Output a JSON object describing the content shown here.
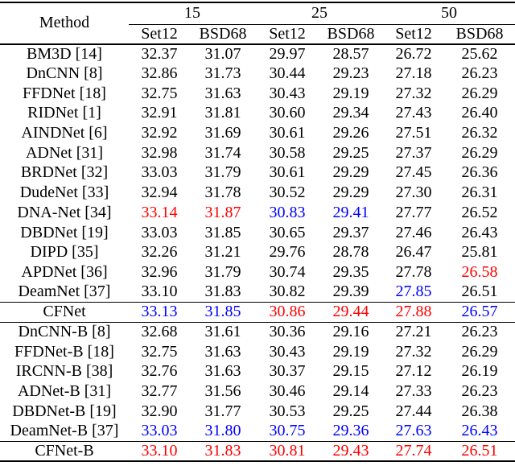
{
  "page": {
    "background": "#ffffff"
  },
  "colors": {
    "k": "#000000",
    "r": "#ff0000",
    "b": "#0000ff"
  },
  "table": {
    "corner_label": "Method",
    "noise_levels": [
      "15",
      "25",
      "50"
    ],
    "dataset_headers": [
      "Set12",
      "BSD68",
      "Set12",
      "BSD68",
      "Set12",
      "BSD68"
    ],
    "sections": [
      {
        "name": "known-noise-methods",
        "separator_above": false,
        "rows": [
          {
            "method": "BM3D [14]",
            "values": [
              "32.37",
              "31.07",
              "29.97",
              "28.57",
              "26.72",
              "25.62"
            ]
          },
          {
            "method": "DnCNN [8]",
            "values": [
              "32.86",
              "31.73",
              "30.44",
              "29.23",
              "27.18",
              "26.23"
            ]
          },
          {
            "method": "FFDNet [18]",
            "values": [
              "32.75",
              "31.63",
              "30.43",
              "29.19",
              "27.32",
              "26.29"
            ]
          },
          {
            "method": "RIDNet [1]",
            "values": [
              "32.91",
              "31.81",
              "30.60",
              "29.34",
              "27.43",
              "26.40"
            ]
          },
          {
            "method": "AINDNet [6]",
            "values": [
              "32.92",
              "31.69",
              "30.61",
              "29.26",
              "27.51",
              "26.32"
            ]
          },
          {
            "method": "ADNet [31]",
            "values": [
              "32.98",
              "31.74",
              "30.58",
              "29.25",
              "27.37",
              "26.29"
            ]
          },
          {
            "method": "BRDNet [32]",
            "values": [
              "33.03",
              "31.79",
              "30.61",
              "29.29",
              "27.45",
              "26.36"
            ]
          },
          {
            "method": "DudeNet [33]",
            "values": [
              "32.94",
              "31.78",
              "30.52",
              "29.29",
              "27.30",
              "26.31"
            ]
          },
          {
            "method": "DNA-Net [34]",
            "values": [
              "33.14",
              "31.87",
              "30.83",
              "29.41",
              "27.77",
              "26.52"
            ],
            "colors": [
              "r",
              "r",
              "b",
              "b",
              "k",
              "k"
            ]
          },
          {
            "method": "DBDNet [19]",
            "values": [
              "33.03",
              "31.85",
              "30.65",
              "29.37",
              "27.46",
              "26.43"
            ]
          },
          {
            "method": "DIPD [35]",
            "values": [
              "32.26",
              "31.21",
              "29.76",
              "28.78",
              "26.47",
              "25.81"
            ]
          },
          {
            "method": "APDNet [36]",
            "values": [
              "32.96",
              "31.79",
              "30.74",
              "29.35",
              "27.78",
              "26.58"
            ],
            "colors": [
              "k",
              "k",
              "k",
              "k",
              "k",
              "r"
            ]
          },
          {
            "method": "DeamNet [37]",
            "values": [
              "33.10",
              "31.83",
              "30.82",
              "29.39",
              "27.85",
              "26.51"
            ],
            "colors": [
              "k",
              "k",
              "k",
              "k",
              "b",
              "k"
            ]
          }
        ]
      },
      {
        "name": "cfnet",
        "separator_above": true,
        "rows": [
          {
            "method": "CFNet",
            "values": [
              "33.13",
              "31.85",
              "30.86",
              "29.44",
              "27.88",
              "26.57"
            ],
            "colors": [
              "b",
              "b",
              "r",
              "r",
              "r",
              "b"
            ]
          }
        ]
      },
      {
        "name": "blind-noise-methods",
        "separator_above": true,
        "rows": [
          {
            "method": "DnCNN-B [8]",
            "values": [
              "32.68",
              "31.61",
              "30.36",
              "29.16",
              "27.21",
              "26.23"
            ]
          },
          {
            "method": "FFDNet-B [18]",
            "values": [
              "32.75",
              "31.63",
              "30.43",
              "29.19",
              "27.32",
              "26.29"
            ]
          },
          {
            "method": "IRCNN-B [38]",
            "values": [
              "32.76",
              "31.63",
              "30.37",
              "29.15",
              "27.12",
              "26.19"
            ]
          },
          {
            "method": "ADNet-B [31]",
            "values": [
              "32.77",
              "31.56",
              "30.46",
              "29.14",
              "27.33",
              "26.23"
            ]
          },
          {
            "method": "DBDNet-B [19]",
            "values": [
              "32.90",
              "31.77",
              "30.53",
              "29.25",
              "27.44",
              "26.38"
            ]
          },
          {
            "method": "DeamNet-B [37]",
            "values": [
              "33.03",
              "31.80",
              "30.75",
              "29.36",
              "27.63",
              "26.43"
            ],
            "colors": [
              "b",
              "b",
              "b",
              "b",
              "b",
              "b"
            ]
          }
        ]
      },
      {
        "name": "cfnet-b",
        "separator_above": true,
        "rows": [
          {
            "method": "CFNet-B",
            "values": [
              "33.10",
              "31.83",
              "30.81",
              "29.43",
              "27.74",
              "26.51"
            ],
            "colors": [
              "r",
              "r",
              "r",
              "r",
              "r",
              "r"
            ]
          }
        ]
      }
    ]
  }
}
